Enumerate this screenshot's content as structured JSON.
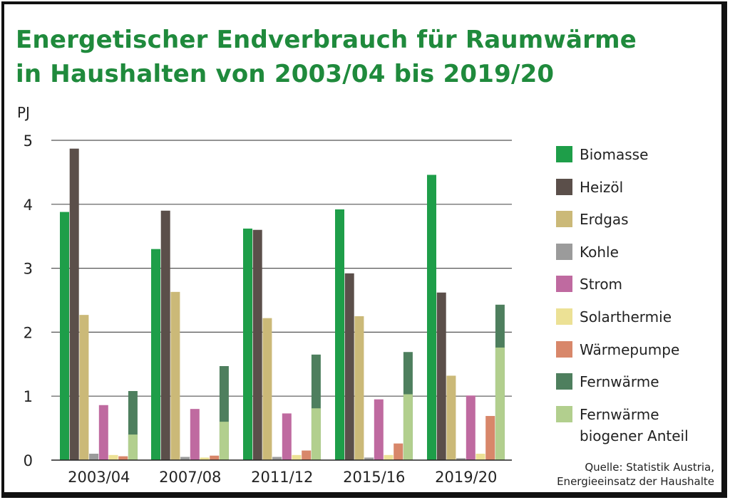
{
  "title_line1": "Energetischer Endverbrauch für Raumwärme",
  "title_line2": "in Haushalten von 2003/04 bis 2019/20",
  "source_line1": "Quelle: Statistik Austria,",
  "source_line2": "Energieeinsatz der Haushalte",
  "chart_data": {
    "type": "bar",
    "ylabel": "PJ",
    "xlabel": "",
    "ylim": [
      0,
      5
    ],
    "yticks": [
      0,
      1,
      2,
      3,
      4,
      5
    ],
    "grid": true,
    "legend_position": "right",
    "categories": [
      "2003/04",
      "2007/08",
      "2011/12",
      "2015/16",
      "2019/20"
    ],
    "series": [
      {
        "name": "Biomasse",
        "color": "#1e9e49",
        "values": [
          3.88,
          3.3,
          3.62,
          3.92,
          4.46
        ]
      },
      {
        "name": "Heizöl",
        "color": "#5b4f4a",
        "values": [
          4.87,
          3.9,
          3.6,
          2.92,
          2.62
        ]
      },
      {
        "name": "Erdgas",
        "color": "#cbb978",
        "values": [
          2.27,
          2.63,
          2.22,
          2.25,
          1.32
        ]
      },
      {
        "name": "Kohle",
        "color": "#9b9b9b",
        "values": [
          0.1,
          0.05,
          0.05,
          0.04,
          0.03
        ]
      },
      {
        "name": "Strom",
        "color": "#bf6aa0",
        "values": [
          0.86,
          0.8,
          0.73,
          0.95,
          1.01
        ]
      },
      {
        "name": "Solarthermie",
        "color": "#ece195",
        "values": [
          0.08,
          0.04,
          0.08,
          0.08,
          0.1
        ]
      },
      {
        "name": "Wärmepumpe",
        "color": "#d8876a",
        "values": [
          0.06,
          0.07,
          0.15,
          0.26,
          0.69
        ]
      },
      {
        "name": "Fernwärme",
        "color": "#4e7f5e",
        "values": [
          1.08,
          1.47,
          1.65,
          1.69,
          2.43
        ]
      },
      {
        "name": "Fernwärme biogener Anteil",
        "label_lines": [
          "Fernwärme",
          "biogener Anteil"
        ],
        "color": "#b2cf8e",
        "values": [
          0.4,
          0.6,
          0.81,
          1.03,
          1.76
        ]
      }
    ],
    "stacked_pair": {
      "total_series": "Fernwärme",
      "part_series": "Fernwärme biogener Anteil"
    }
  }
}
